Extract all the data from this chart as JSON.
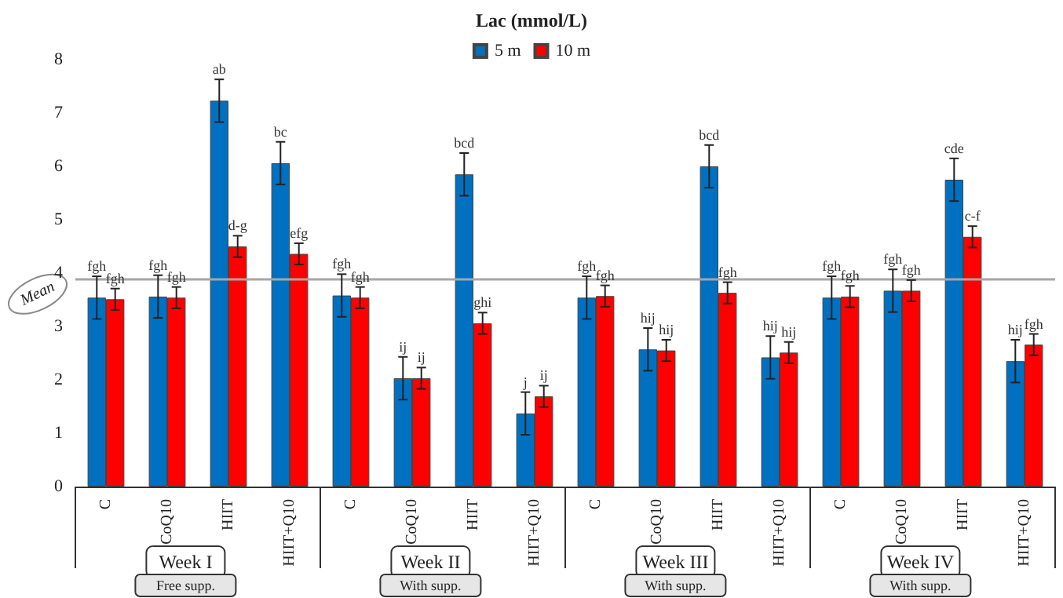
{
  "chart_data": {
    "type": "bar",
    "title": "Lac (mmol/L)",
    "categories": [
      "C",
      "CoQ10",
      "HIIT",
      "HIIT+Q10",
      "C",
      "CoQ10",
      "HIIT",
      "HIIT+Q10",
      "C",
      "CoQ10",
      "HIIT",
      "HIIT+Q10",
      "C",
      "CoQ10",
      "HIIT",
      "HIIT+Q10"
    ],
    "series": [
      {
        "name": "5 m",
        "color": "#0070c0",
        "values": [
          3.54,
          3.56,
          7.23,
          6.06,
          3.58,
          2.03,
          5.85,
          1.37,
          3.54,
          2.57,
          6.0,
          2.42,
          3.54,
          3.67,
          5.75,
          2.35
        ],
        "errors": [
          0.4,
          0.4,
          0.4,
          0.4,
          0.4,
          0.4,
          0.4,
          0.4,
          0.4,
          0.4,
          0.4,
          0.4,
          0.4,
          0.4,
          0.4,
          0.4
        ],
        "value_labels": [
          "fgh",
          "fgh",
          "ab",
          "bc",
          "fgh",
          "ij",
          "bcd",
          "j",
          "fgh",
          "hij",
          "bcd",
          "hij",
          "fgh",
          "fgh",
          "cde",
          "hij"
        ]
      },
      {
        "name": "10 m",
        "color": "#ff0000",
        "values": [
          3.51,
          3.54,
          4.5,
          4.36,
          3.54,
          2.03,
          3.06,
          1.69,
          3.57,
          2.55,
          3.63,
          2.51,
          3.56,
          3.67,
          4.68,
          2.66
        ],
        "errors": [
          0.2,
          0.2,
          0.2,
          0.2,
          0.2,
          0.2,
          0.2,
          0.2,
          0.2,
          0.2,
          0.2,
          0.2,
          0.2,
          0.2,
          0.2,
          0.2
        ],
        "value_labels": [
          "fgh",
          "fgh",
          "d-g",
          "efg",
          "fgh",
          "ij",
          "ghi",
          "ij",
          "fgh",
          "hij",
          "fgh",
          "hij",
          "fgh",
          "fgh",
          "c-f",
          "fgh"
        ]
      }
    ],
    "ylim": [
      0,
      8
    ],
    "yticks": [
      0,
      1,
      2,
      3,
      4,
      5,
      6,
      7,
      8
    ],
    "ref_lines": [
      {
        "axis": "y",
        "value": 3.9,
        "label": "Mean",
        "color": "#a6a6a6"
      }
    ],
    "annotations": [
      "Week I",
      "Free supp.",
      "Week II",
      "With supp.",
      "Week III",
      "With supp.",
      "Week IV",
      "With supp."
    ],
    "grid": false,
    "legend": "top"
  }
}
